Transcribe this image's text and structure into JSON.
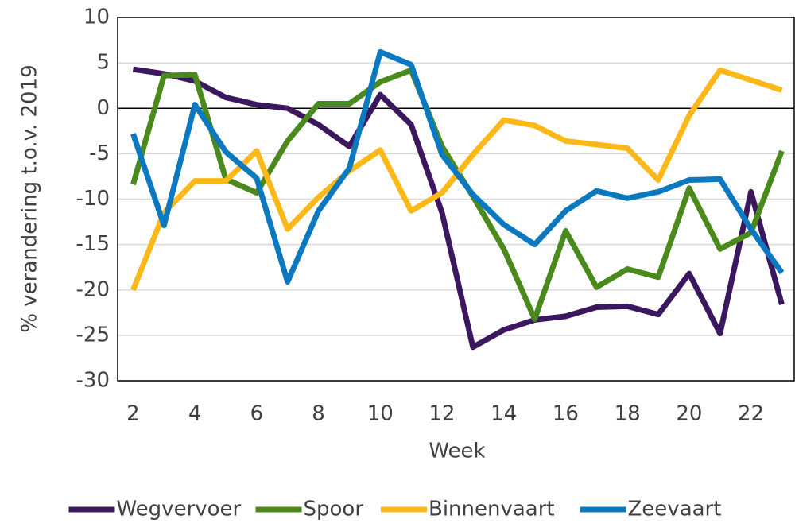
{
  "chart_data": {
    "type": "line",
    "x_label": "Week",
    "y_label": "% verandering t.o.v. 2019",
    "x": [
      2,
      3,
      4,
      5,
      6,
      7,
      8,
      9,
      10,
      11,
      12,
      13,
      14,
      15,
      16,
      17,
      18,
      19,
      20,
      21,
      22,
      23
    ],
    "series": [
      {
        "name": "Wegvervoer",
        "color": "#3b1760",
        "values": [
          4.3,
          3.8,
          3.0,
          1.2,
          0.4,
          0.0,
          -1.8,
          -4.2,
          1.5,
          -1.8,
          -11.5,
          -26.3,
          -24.4,
          -23.3,
          -22.9,
          -21.9,
          -21.8,
          -22.7,
          -18.2,
          -24.8,
          -9.2,
          -21.6
        ]
      },
      {
        "name": "Spoor",
        "color": "#4a8a1c",
        "values": [
          -8.4,
          3.6,
          3.7,
          -7.8,
          -9.3,
          -3.6,
          0.5,
          0.5,
          2.9,
          4.2,
          -4.2,
          -9.7,
          -15.5,
          -23.2,
          -13.5,
          -19.7,
          -17.7,
          -18.6,
          -8.8,
          -15.5,
          -13.7,
          -4.7
        ]
      },
      {
        "name": "Binnenvaart",
        "color": "#fbb817",
        "values": [
          -20,
          -11.5,
          -8,
          -8,
          -4.7,
          -13.3,
          -9.8,
          -6.9,
          -4.6,
          -11.3,
          -9.3,
          -5.1,
          -1.3,
          -1.9,
          -3.6,
          -4,
          -4.4,
          -7.9,
          -0.8,
          4.2,
          3.1,
          2.0
        ]
      },
      {
        "name": "Zeevaart",
        "color": "#0b78bf",
        "values": [
          -2.8,
          -12.9,
          0.4,
          -4.8,
          -7.7,
          -19.1,
          -11.3,
          -6.6,
          6.2,
          4.8,
          -5.1,
          -9.5,
          -12.8,
          -15,
          -11.3,
          -9.1,
          -9.9,
          -9.2,
          -7.9,
          -7.8,
          -13.3,
          -18.1
        ]
      }
    ],
    "xlim": [
      1.5,
      23.4
    ],
    "ylim": [
      -30,
      10
    ],
    "xticks": [
      2,
      4,
      6,
      8,
      10,
      12,
      14,
      16,
      18,
      20,
      22
    ],
    "yticks": [
      -30,
      -25,
      -20,
      -15,
      -10,
      -5,
      0,
      5,
      10
    ],
    "grid": true,
    "legend": "bottom"
  }
}
